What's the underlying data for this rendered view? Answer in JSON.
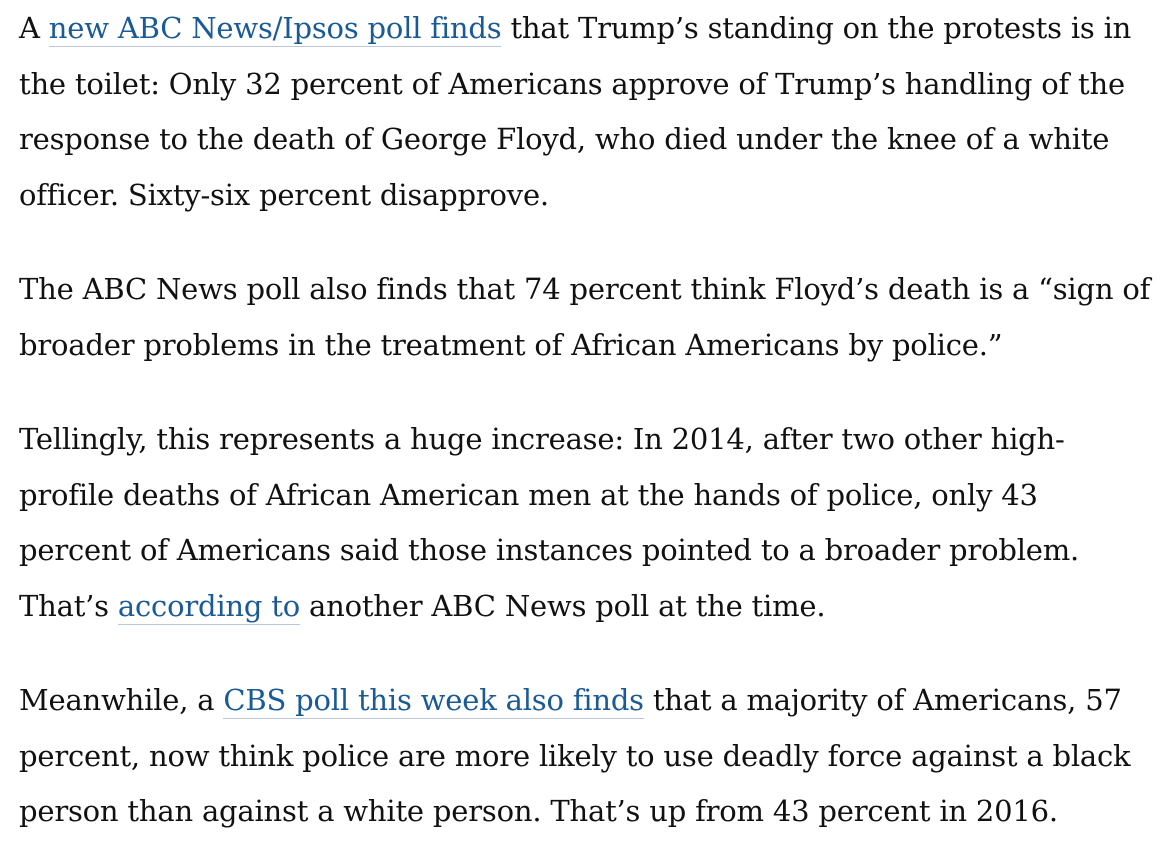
{
  "article": {
    "paragraphs": [
      {
        "before": "A ",
        "link": "new ABC News/Ipsos poll finds",
        "after": " that Trump’s standing on the protests is in the toilet: Only 32 percent of Americans approve of Trump’s handling of the response to the death of George Floyd, who died under the knee of a white officer. Sixty-six percent disapprove."
      },
      {
        "text": "The ABC News poll also finds that 74 percent think Floyd’s death is a “sign of broader problems in the treatment of African Americans by police.”"
      },
      {
        "before": "Tellingly, this represents a huge increase: In 2014, after two other high-profile deaths of African American men at the hands of police, only 43 percent of Americans said those instances pointed to a broader problem. That’s ",
        "link": "according to",
        "after": " another ABC News poll at the time."
      },
      {
        "before": "Meanwhile, a ",
        "link": "CBS poll this week also finds",
        "after": " that a majority of Americans, 57 percent, now think police are more likely to use deadly force against a black person than against a white person. That’s up from 43 percent in 2016."
      }
    ],
    "link_color": "#1a5a96",
    "text_color": "#111111"
  }
}
